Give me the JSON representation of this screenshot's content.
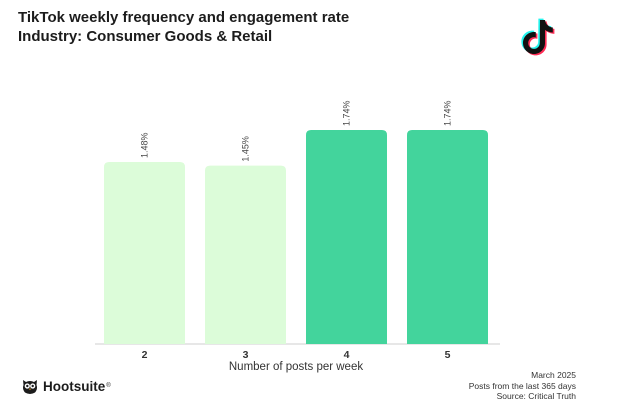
{
  "chart_data": {
    "type": "bar",
    "title": "TikTok weekly frequency and engagement rate",
    "subtitle": "Industry: Consumer Goods & Retail",
    "categories": [
      "2",
      "3",
      "4",
      "5"
    ],
    "values": [
      1.48,
      1.45,
      1.74,
      1.74
    ],
    "value_labels": [
      "1.48%",
      "1.45%",
      "1.74%",
      "1.74%"
    ],
    "xlabel": "Number of posts per week",
    "ylabel": "",
    "ylim": [
      0,
      1.74
    ],
    "grid": false,
    "legend": "none",
    "bar_colors": [
      "#dcfcd9",
      "#dcfcd9",
      "#43d49c",
      "#43d49c"
    ]
  },
  "footer": {
    "brand": "Hootsuite",
    "reg_mark": "®",
    "date": "March 2025",
    "period": "Posts from the last 365 days",
    "source": "Source: Critical Truth"
  },
  "icons": {
    "platform": "tiktok-logo-icon",
    "brand": "hootsuite-owl-icon"
  },
  "colors": {
    "text": "#1c1c1c",
    "tiktok_cyan": "#25f4ee",
    "tiktok_red": "#fe2c55",
    "tiktok_black": "#111111"
  }
}
